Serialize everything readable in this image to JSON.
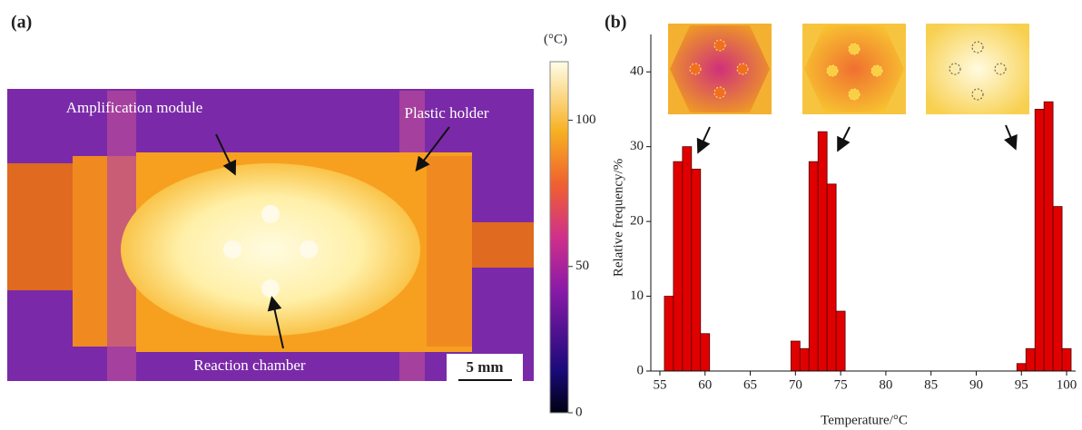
{
  "chart_data": [
    {
      "type": "thermal-image",
      "panel_label": "(a)",
      "annotations": [
        "Amplification module",
        "Plastic holder",
        "Reaction chamber"
      ],
      "scale_bar": "5 mm",
      "colorbar": {
        "unit": "(°C)",
        "lim": [
          0,
          120
        ],
        "ticks": [
          0,
          50,
          100
        ]
      }
    },
    {
      "type": "histogram",
      "panel_label": "(b)",
      "xlabel": "Temperature/°C",
      "ylabel": "Relative frequency/%",
      "color": "#e00000",
      "bins": [
        55.5,
        56.5,
        57.5,
        58.5,
        59.5,
        60.5,
        61.5,
        62.5,
        63.5,
        64.5,
        65.5,
        66.5,
        67.5,
        68.5,
        69.5,
        70.5,
        71.5,
        72.5,
        73.5,
        74.5,
        75.5,
        76.5,
        77.5,
        78.5,
        79.5,
        80.5,
        81.5,
        82.5,
        83.5,
        84.5,
        85.5,
        86.5,
        87.5,
        88.5,
        89.5,
        90.5,
        91.5,
        92.5,
        93.5,
        94.5,
        95.5,
        96.5,
        97.5,
        98.5,
        99.5,
        100.5
      ],
      "counts": [
        10,
        28,
        30,
        27,
        5,
        0,
        0,
        0,
        0,
        0,
        0,
        0,
        0,
        0,
        4,
        3,
        28,
        32,
        25,
        8,
        0,
        0,
        0,
        0,
        0,
        0,
        0,
        0,
        0,
        0,
        0,
        0,
        0,
        0,
        0,
        0,
        0,
        0,
        0,
        1,
        3,
        35,
        36,
        22,
        3
      ],
      "xlim": [
        54,
        101
      ],
      "ylim": [
        0,
        45
      ],
      "xticks": [
        55,
        60,
        65,
        70,
        75,
        80,
        85,
        90,
        95,
        100
      ],
      "yticks": [
        0,
        10,
        20,
        30,
        40
      ]
    }
  ]
}
